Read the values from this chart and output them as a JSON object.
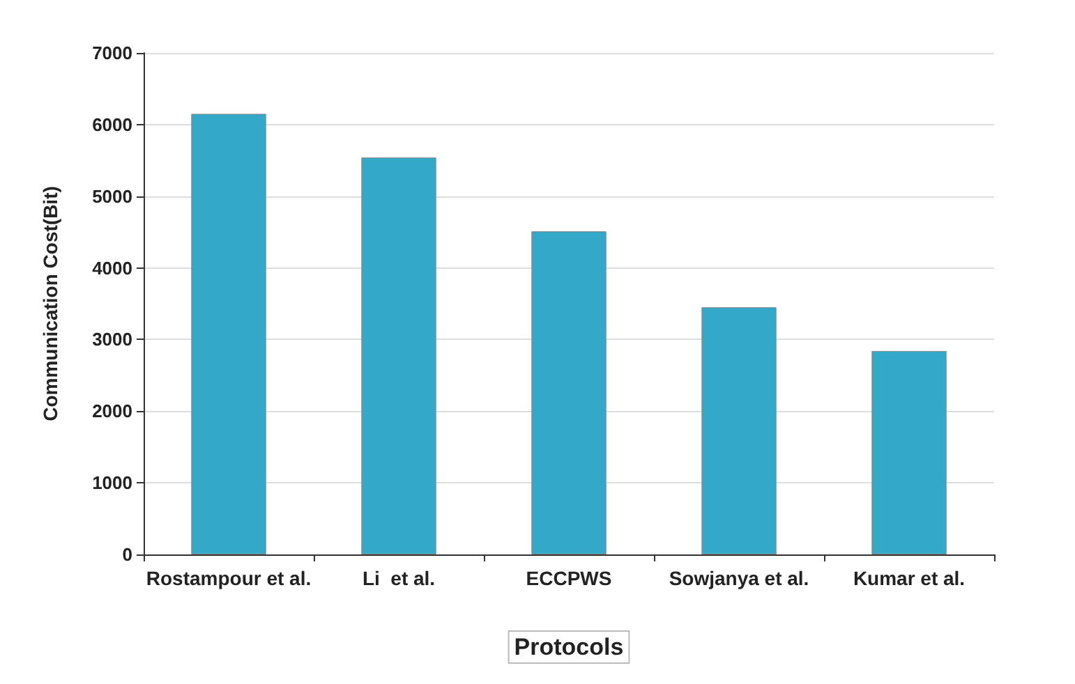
{
  "chart_data": {
    "type": "bar",
    "xlabel": "Protocols",
    "ylabel": "Communication Cost(Bit)",
    "categories": [
      "Rostampour et al.",
      "Li  et al.",
      "ECCPWS",
      "Sowjanya et al.",
      "Kumar et al."
    ],
    "values": [
      6150,
      5540,
      4510,
      3450,
      2840
    ],
    "color": "#33a8c8",
    "ylim": [
      0,
      7000
    ],
    "yticks": [
      0,
      1000,
      2000,
      3000,
      4000,
      5000,
      6000,
      7000
    ],
    "grid": "y"
  }
}
